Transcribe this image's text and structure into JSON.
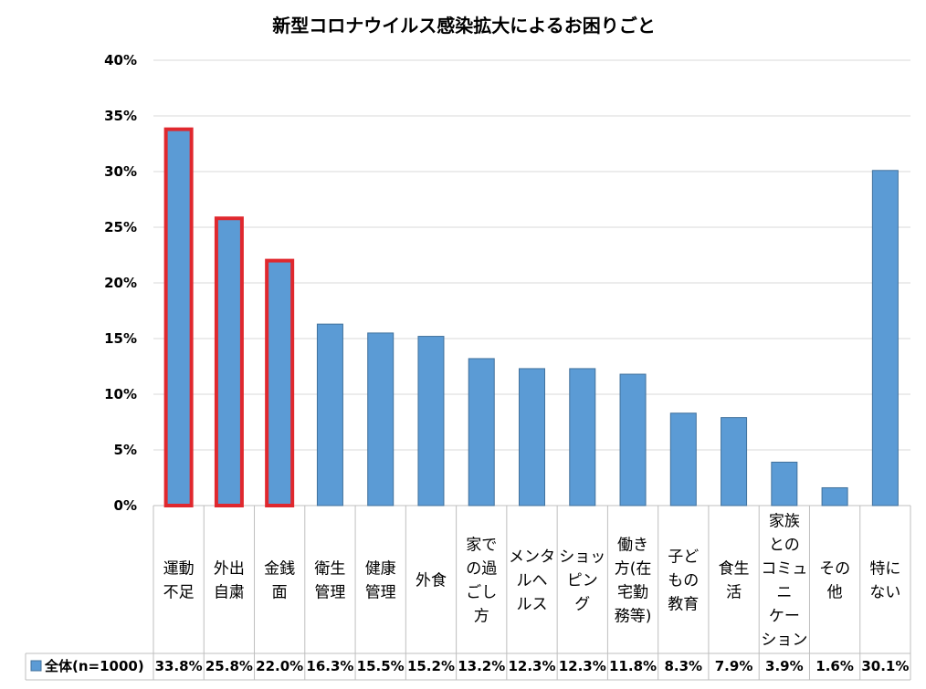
{
  "chart_data": {
    "type": "bar",
    "title": "新型コロナウイルス感染拡大によるお困りごと",
    "xlabel": "",
    "ylabel": "",
    "ylim": [
      0,
      40
    ],
    "yticks": [
      "0%",
      "5%",
      "10%",
      "15%",
      "20%",
      "25%",
      "30%",
      "35%",
      "40%"
    ],
    "grid": true,
    "legend_placement": "bottom-left (data table)",
    "categories": [
      [
        "運動",
        "不足"
      ],
      [
        "外出",
        "自粛"
      ],
      [
        "金銭",
        "面"
      ],
      [
        "衛生",
        "管理"
      ],
      [
        "健康",
        "管理"
      ],
      [
        "外食"
      ],
      [
        "家で",
        "の過",
        "ごし",
        "方"
      ],
      [
        "メンタ",
        "ルヘ",
        "ルス"
      ],
      [
        "ショッ",
        "ピン",
        "グ"
      ],
      [
        "働き",
        "方(在",
        "宅勤",
        "務等)"
      ],
      [
        "子ど",
        "もの",
        "教育"
      ],
      [
        "食生",
        "活"
      ],
      [
        "家族",
        "との",
        "コミュ",
        "ニ",
        "ケー",
        "ション"
      ],
      [
        "その",
        "他"
      ],
      [
        "特に",
        "ない"
      ]
    ],
    "series": [
      {
        "name": "全体(n=1000)",
        "color": "#5B9BD5",
        "values": [
          33.8,
          25.8,
          22.0,
          16.3,
          15.5,
          15.2,
          13.2,
          12.3,
          12.3,
          11.8,
          8.3,
          7.9,
          3.9,
          1.6,
          30.1
        ],
        "value_labels": [
          "33.8%",
          "25.8%",
          "22.0%",
          "16.3%",
          "15.5%",
          "15.2%",
          "13.2%",
          "12.3%",
          "12.3%",
          "11.8%",
          "8.3%",
          "7.9%",
          "3.9%",
          "1.6%",
          "30.1%"
        ]
      }
    ],
    "highlighted_categories": [
      0,
      1,
      2
    ],
    "highlight_color": "#E0282E",
    "bar_border_color": "#41719C",
    "grid_color": "#D9D9D9",
    "table_border_color": "#BFBFBF"
  }
}
